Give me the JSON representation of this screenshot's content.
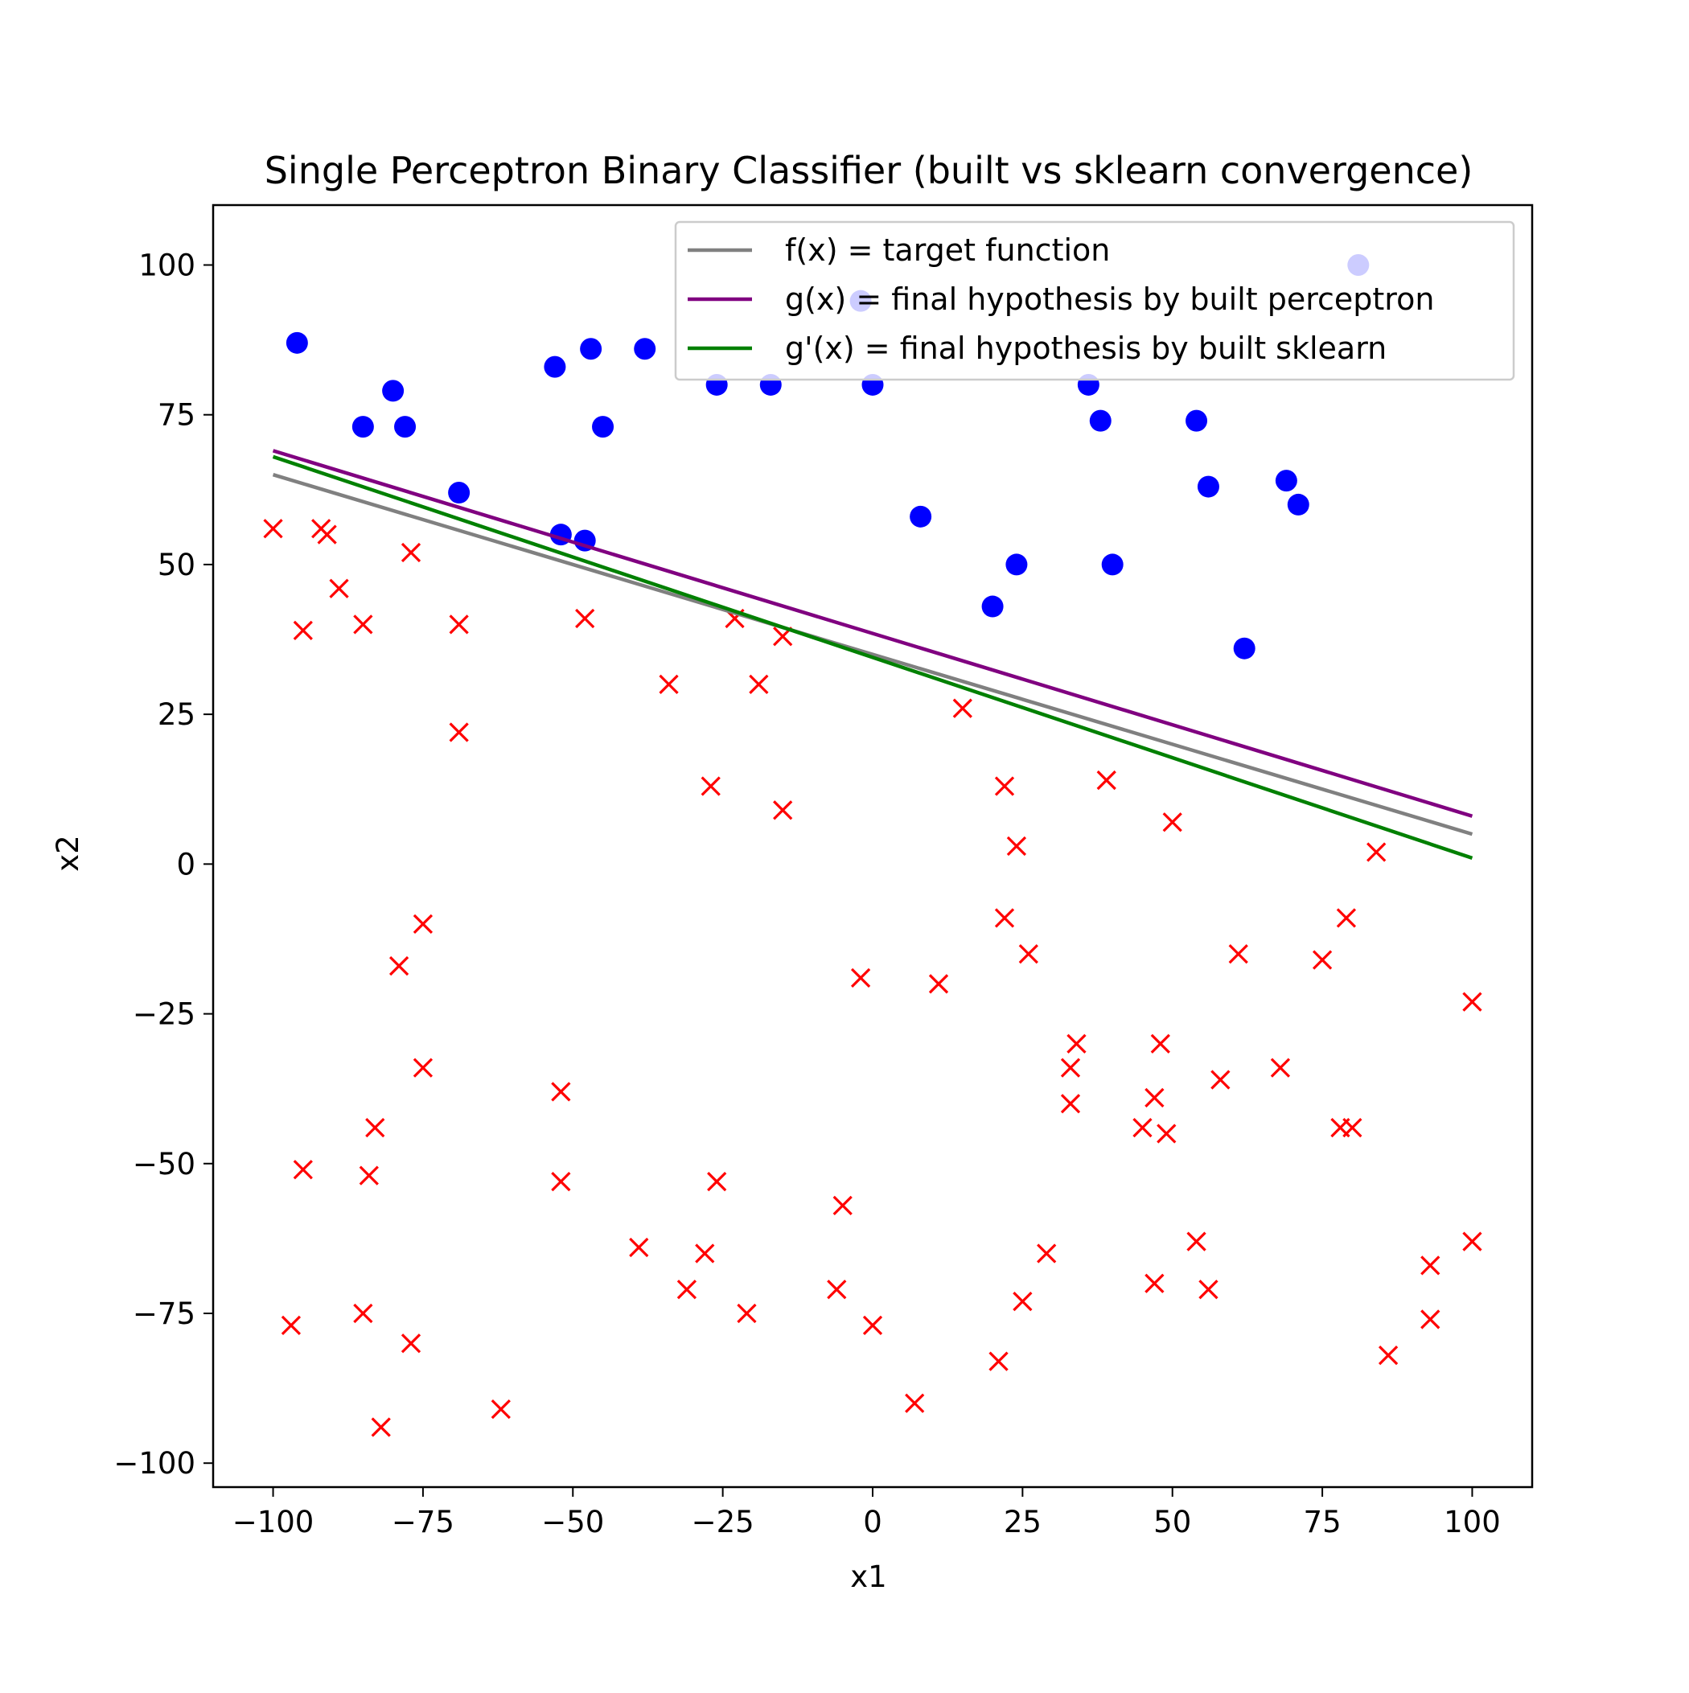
{
  "chart_data": {
    "type": "scatter",
    "title": "Single Perceptron Binary Classifier (built vs sklearn convergence)",
    "xlabel": "x1",
    "ylabel": "x2",
    "xlim": [
      -110,
      110
    ],
    "ylim": [
      -104,
      110
    ],
    "xticks": [
      -100,
      -75,
      -50,
      -25,
      0,
      25,
      50,
      75,
      100
    ],
    "yticks": [
      -100,
      -75,
      -50,
      -25,
      0,
      25,
      50,
      75,
      100
    ],
    "xtick_labels": [
      "−100",
      "−75",
      "−50",
      "−25",
      "0",
      "25",
      "50",
      "75",
      "100"
    ],
    "ytick_labels": [
      "−100",
      "−75",
      "−50",
      "−25",
      "0",
      "25",
      "50",
      "75",
      "100"
    ],
    "grid": false,
    "legend_position": "top-right",
    "lines": [
      {
        "name": "f(x) = target function",
        "color": "#808080",
        "x": [
          -100,
          100
        ],
        "y": [
          65,
          5
        ]
      },
      {
        "name": "g(x) = final hypothesis by built perceptron",
        "color": "#800080",
        "x": [
          -100,
          100
        ],
        "y": [
          69,
          8
        ]
      },
      {
        "name": "g'(x) = final hypothesis by built sklearn",
        "color": "#008000",
        "x": [
          -100,
          100
        ],
        "y": [
          68,
          1
        ]
      }
    ],
    "scatter_series": [
      {
        "marker": "circle",
        "color": "#0000ff",
        "points": [
          [
            -96,
            87
          ],
          [
            -85,
            73
          ],
          [
            -80,
            79
          ],
          [
            -78,
            73
          ],
          [
            -69,
            62
          ],
          [
            -53,
            83
          ],
          [
            -52,
            55
          ],
          [
            -48,
            54
          ],
          [
            -47,
            86
          ],
          [
            -45,
            73
          ],
          [
            -38,
            86
          ],
          [
            -26,
            80
          ],
          [
            -17,
            80
          ],
          [
            -2,
            94
          ],
          [
            0,
            80
          ],
          [
            8,
            58
          ],
          [
            20,
            43
          ],
          [
            24,
            50
          ],
          [
            36,
            80
          ],
          [
            38,
            74
          ],
          [
            40,
            50
          ],
          [
            54,
            74
          ],
          [
            56,
            63
          ],
          [
            62,
            36
          ],
          [
            69,
            64
          ],
          [
            71,
            60
          ],
          [
            81,
            100
          ]
        ]
      },
      {
        "marker": "x",
        "color": "#ff0000",
        "points": [
          [
            -100,
            56
          ],
          [
            -92,
            56
          ],
          [
            -91,
            55
          ],
          [
            -95,
            39
          ],
          [
            -89,
            46
          ],
          [
            -85,
            40
          ],
          [
            -77,
            52
          ],
          [
            -69,
            40
          ],
          [
            -69,
            22
          ],
          [
            -48,
            41
          ],
          [
            -34,
            30
          ],
          [
            -23,
            41
          ],
          [
            -15,
            38
          ],
          [
            -19,
            30
          ],
          [
            -27,
            13
          ],
          [
            -15,
            9
          ],
          [
            15,
            26
          ],
          [
            22,
            13
          ],
          [
            24,
            3
          ],
          [
            39,
            14
          ],
          [
            50,
            7
          ],
          [
            84,
            2
          ],
          [
            -75,
            -10
          ],
          [
            -79,
            -17
          ],
          [
            22,
            -9
          ],
          [
            26,
            -15
          ],
          [
            -2,
            -19
          ],
          [
            11,
            -20
          ],
          [
            61,
            -15
          ],
          [
            75,
            -16
          ],
          [
            79,
            -9
          ],
          [
            100,
            -23
          ],
          [
            -75,
            -34
          ],
          [
            -52,
            -38
          ],
          [
            34,
            -30
          ],
          [
            33,
            -34
          ],
          [
            33,
            -40
          ],
          [
            48,
            -30
          ],
          [
            47,
            -39
          ],
          [
            45,
            -44
          ],
          [
            49,
            -45
          ],
          [
            58,
            -36
          ],
          [
            68,
            -34
          ],
          [
            78,
            -44
          ],
          [
            80,
            -44
          ],
          [
            -83,
            -44
          ],
          [
            -84,
            -52
          ],
          [
            -95,
            -51
          ],
          [
            -52,
            -53
          ],
          [
            -26,
            -53
          ],
          [
            -5,
            -57
          ],
          [
            -39,
            -64
          ],
          [
            -28,
            -65
          ],
          [
            -31,
            -71
          ],
          [
            -6,
            -71
          ],
          [
            29,
            -65
          ],
          [
            54,
            -63
          ],
          [
            47,
            -70
          ],
          [
            56,
            -71
          ],
          [
            93,
            -67
          ],
          [
            100,
            -63
          ],
          [
            -97,
            -77
          ],
          [
            -85,
            -75
          ],
          [
            -77,
            -80
          ],
          [
            -21,
            -75
          ],
          [
            0,
            -77
          ],
          [
            25,
            -73
          ],
          [
            21,
            -83
          ],
          [
            7,
            -90
          ],
          [
            93,
            -76
          ],
          [
            86,
            -82
          ],
          [
            -82,
            -94
          ],
          [
            -62,
            -91
          ]
        ]
      }
    ]
  }
}
